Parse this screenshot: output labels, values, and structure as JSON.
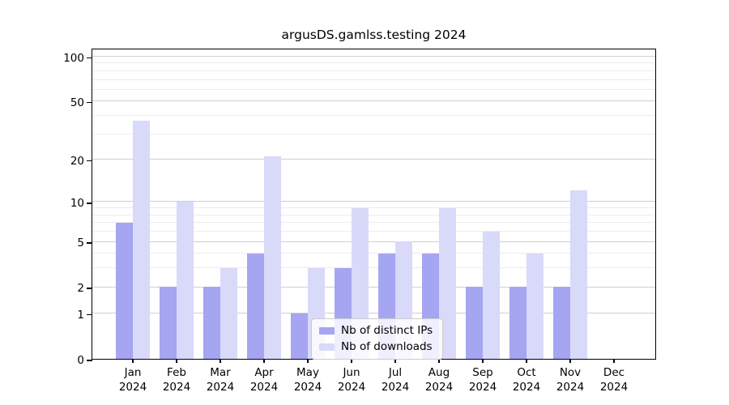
{
  "chart_data": {
    "type": "bar",
    "title": "argusDS.gamlss.testing 2024",
    "categories": [
      "Jan",
      "Feb",
      "Mar",
      "Apr",
      "May",
      "Jun",
      "Jul",
      "Aug",
      "Sep",
      "Oct",
      "Nov",
      "Dec"
    ],
    "year_label": "2024",
    "series": [
      {
        "name": "Nb of distinct IPs",
        "color": "#a5a5f2",
        "values": [
          7,
          2,
          2,
          4,
          1,
          3,
          4,
          4,
          2,
          2,
          2,
          0
        ]
      },
      {
        "name": "Nb of downloads",
        "color": "#d9d9f9",
        "values": [
          37,
          10,
          3,
          21,
          3,
          9,
          5,
          9,
          6,
          4,
          12,
          0
        ]
      }
    ],
    "xlabel": "",
    "ylabel": "",
    "yscale": "log1p",
    "ylim": [
      0,
      114
    ],
    "yticks": [
      0,
      1,
      2,
      5,
      10,
      20,
      50,
      100
    ],
    "minor_gridlines": [
      3,
      4,
      6,
      7,
      8,
      9,
      30,
      40,
      60,
      70,
      80,
      90
    ],
    "grid": true,
    "legend_position": "inside lower-center",
    "colors": {
      "major_grid": "#cfcfcf",
      "minor_grid": "#ececec",
      "spine": "#000000",
      "background": "#ffffff"
    }
  }
}
